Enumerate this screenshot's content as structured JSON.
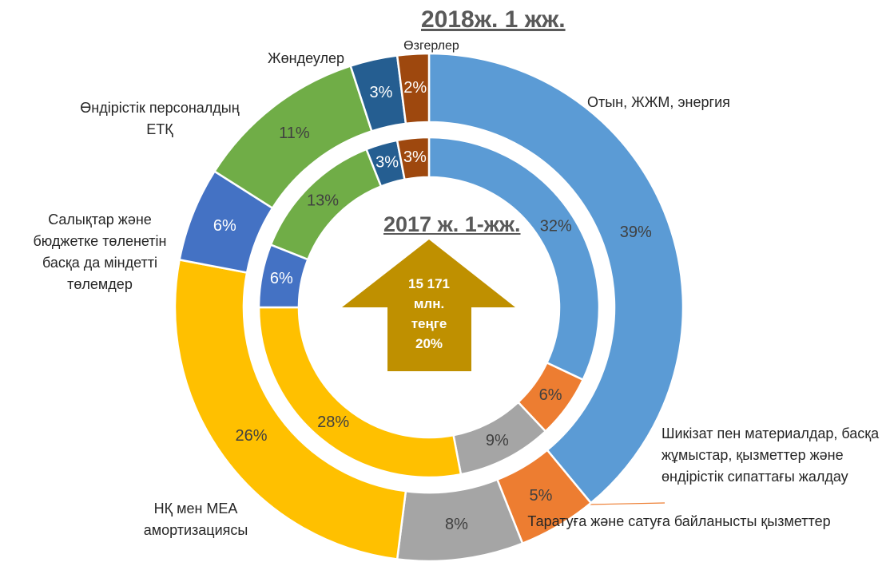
{
  "chart_data": {
    "type": "donut",
    "categories": [
      "Отын, ЖЖМ, энергия",
      "Шикізат пен материалдар, басқа жұмыстар, қызметтер және өндірістік сипаттағы жалдау",
      "Таратуға және сатуға байланысты қызметтер",
      "НҚ мен МЕА амортизациясы",
      "Салықтар және бюджетке төленетін басқа да міндетті төлемдер",
      "Өндірістік персоналдың ЕТҚ",
      "Жөндеулер",
      "Өзгерлер"
    ],
    "colors": [
      "#5b9bd5",
      "#ed7d31",
      "#a5a5a5",
      "#ffc000",
      "#4472c4",
      "#70ad47",
      "#255e91",
      "#9e480e"
    ],
    "series": [
      {
        "name": "2018ж. 1 жж.",
        "values": [
          39,
          5,
          8,
          26,
          6,
          11,
          3,
          2
        ],
        "value_labels": [
          "39%",
          "5%",
          "8%",
          "26%",
          "6%",
          "11%",
          "3%",
          "2%"
        ]
      },
      {
        "name": "2017 ж. 1-жж.",
        "values": [
          32,
          6,
          9,
          28,
          6,
          13,
          3,
          3
        ],
        "value_labels": [
          "32%",
          "6%",
          "9%",
          "28%",
          "6%",
          "13%",
          "3%",
          "3%"
        ]
      }
    ],
    "annotation": "15 171 млн. теңге 20%"
  }
}
